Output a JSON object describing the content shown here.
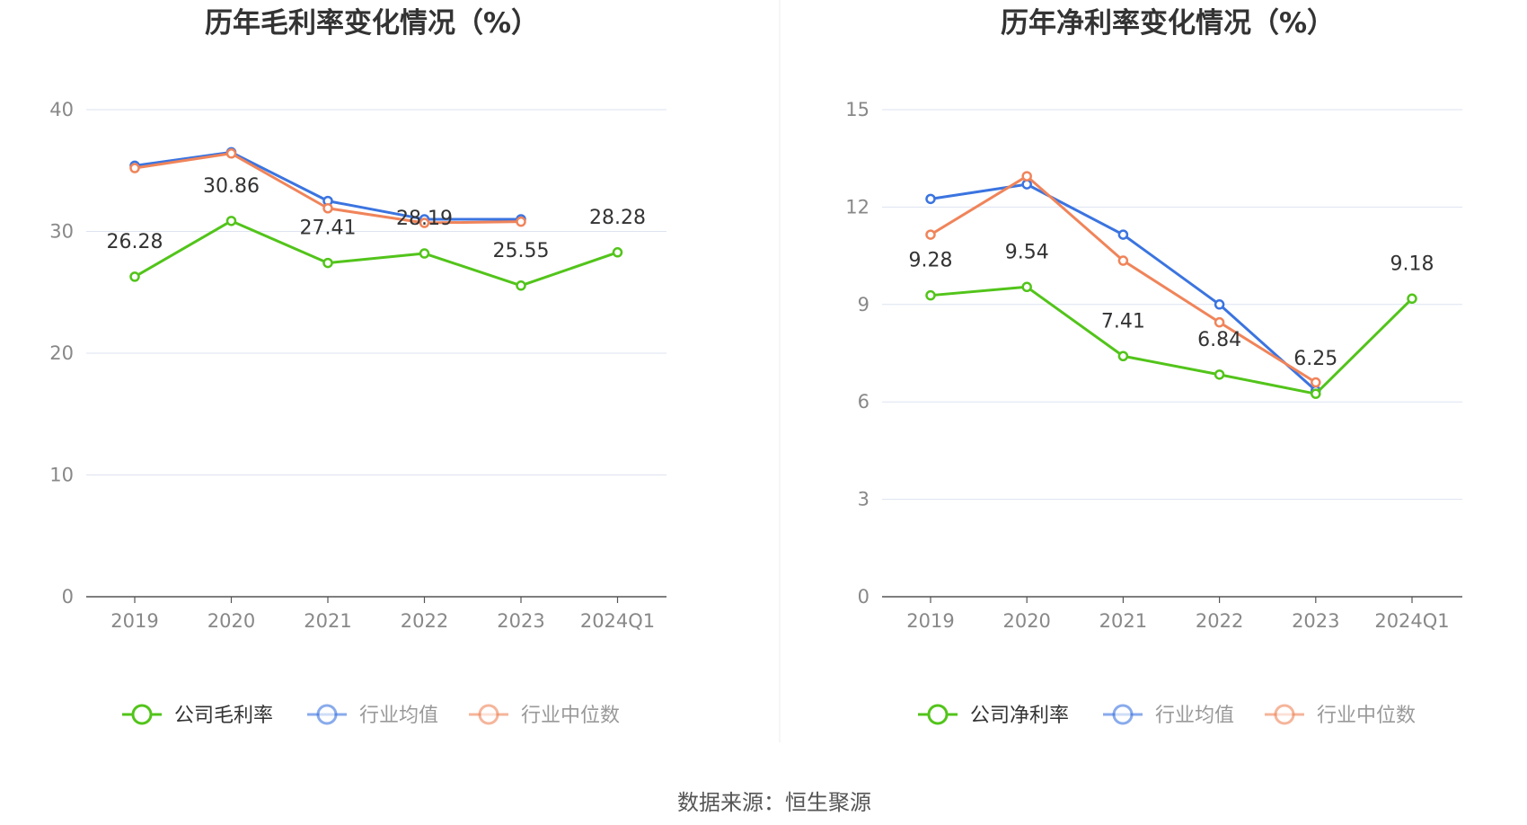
{
  "source_text": "数据来源：恒生聚源",
  "chart_data": [
    {
      "type": "line",
      "title": "历年毛利率变化情况（%）",
      "categories": [
        "2019",
        "2020",
        "2021",
        "2022",
        "2023",
        "2024Q1"
      ],
      "ylim": [
        0,
        40
      ],
      "yticks": [
        0,
        10,
        20,
        30,
        40
      ],
      "grid": true,
      "legend_position": "bottom",
      "series": [
        {
          "name": "公司毛利率",
          "color": "#52c41a",
          "values": [
            26.28,
            30.86,
            27.41,
            28.19,
            25.55,
            28.28
          ],
          "labels": [
            "26.28",
            "30.86",
            "27.41",
            "28.19",
            "25.55",
            "28.28"
          ]
        },
        {
          "name": "行业均值",
          "color": "#3b74e0",
          "values": [
            35.4,
            36.5,
            32.5,
            31.0,
            31.0,
            null
          ]
        },
        {
          "name": "行业中位数",
          "color": "#f0845a",
          "values": [
            35.2,
            36.4,
            31.9,
            30.7,
            30.8,
            null
          ]
        }
      ]
    },
    {
      "type": "line",
      "title": "历年净利率变化情况（%）",
      "categories": [
        "2019",
        "2020",
        "2021",
        "2022",
        "2023",
        "2024Q1"
      ],
      "ylim": [
        0,
        15
      ],
      "yticks": [
        0,
        3,
        6,
        9,
        12,
        15
      ],
      "grid": true,
      "legend_position": "bottom",
      "series": [
        {
          "name": "公司净利率",
          "color": "#52c41a",
          "values": [
            9.28,
            9.54,
            7.41,
            6.84,
            6.25,
            9.18
          ],
          "labels": [
            "9.28",
            "9.54",
            "7.41",
            "6.84",
            "6.25",
            "9.18"
          ]
        },
        {
          "name": "行业均值",
          "color": "#3b74e0",
          "values": [
            12.25,
            12.7,
            11.15,
            9.0,
            6.35,
            null
          ]
        },
        {
          "name": "行业中位数",
          "color": "#f0845a",
          "values": [
            11.15,
            12.95,
            10.35,
            8.45,
            6.6,
            null
          ]
        }
      ]
    }
  ]
}
